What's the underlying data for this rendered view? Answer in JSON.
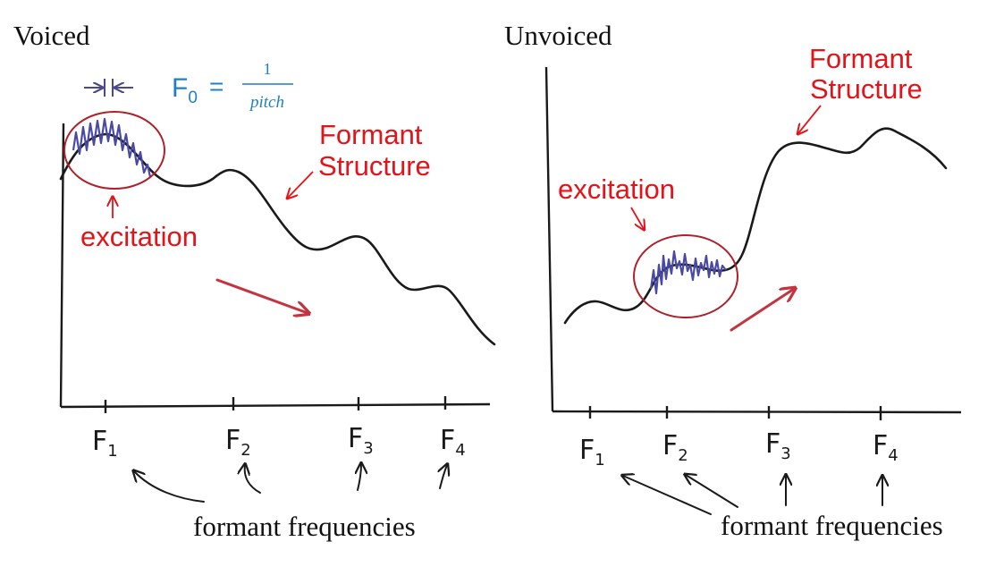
{
  "colors": {
    "annotation_red": "#e4131a",
    "formula_blue": "#1f7fc4",
    "ink": "#1a1a1a",
    "excitation_wave": "#4a4aa6",
    "arrow_red": "#c4343f",
    "circle_red": "#b0202a"
  },
  "voiced": {
    "title": "Voiced",
    "f0_label": "F",
    "f0_sub": "0",
    "f0_equals": "=",
    "f0_numerator": "1",
    "f0_denominator": "pitch",
    "formant_label_line1": "Formant",
    "formant_label_line2": "Structure",
    "excitation_label": "excitation",
    "ticks": [
      {
        "main": "F",
        "sub": "1"
      },
      {
        "main": "F",
        "sub": "2"
      },
      {
        "main": "F",
        "sub": "3"
      },
      {
        "main": "F",
        "sub": "4"
      }
    ],
    "caption": "formant frequencies"
  },
  "unvoiced": {
    "title": "Unvoiced",
    "formant_label_line1": "Formant",
    "formant_label_line2": "Structure",
    "excitation_label": "excitation",
    "ticks": [
      {
        "main": "F",
        "sub": "1"
      },
      {
        "main": "F",
        "sub": "2"
      },
      {
        "main": "F",
        "sub": "3"
      },
      {
        "main": "F",
        "sub": "4"
      }
    ],
    "caption": "formant frequencies"
  }
}
